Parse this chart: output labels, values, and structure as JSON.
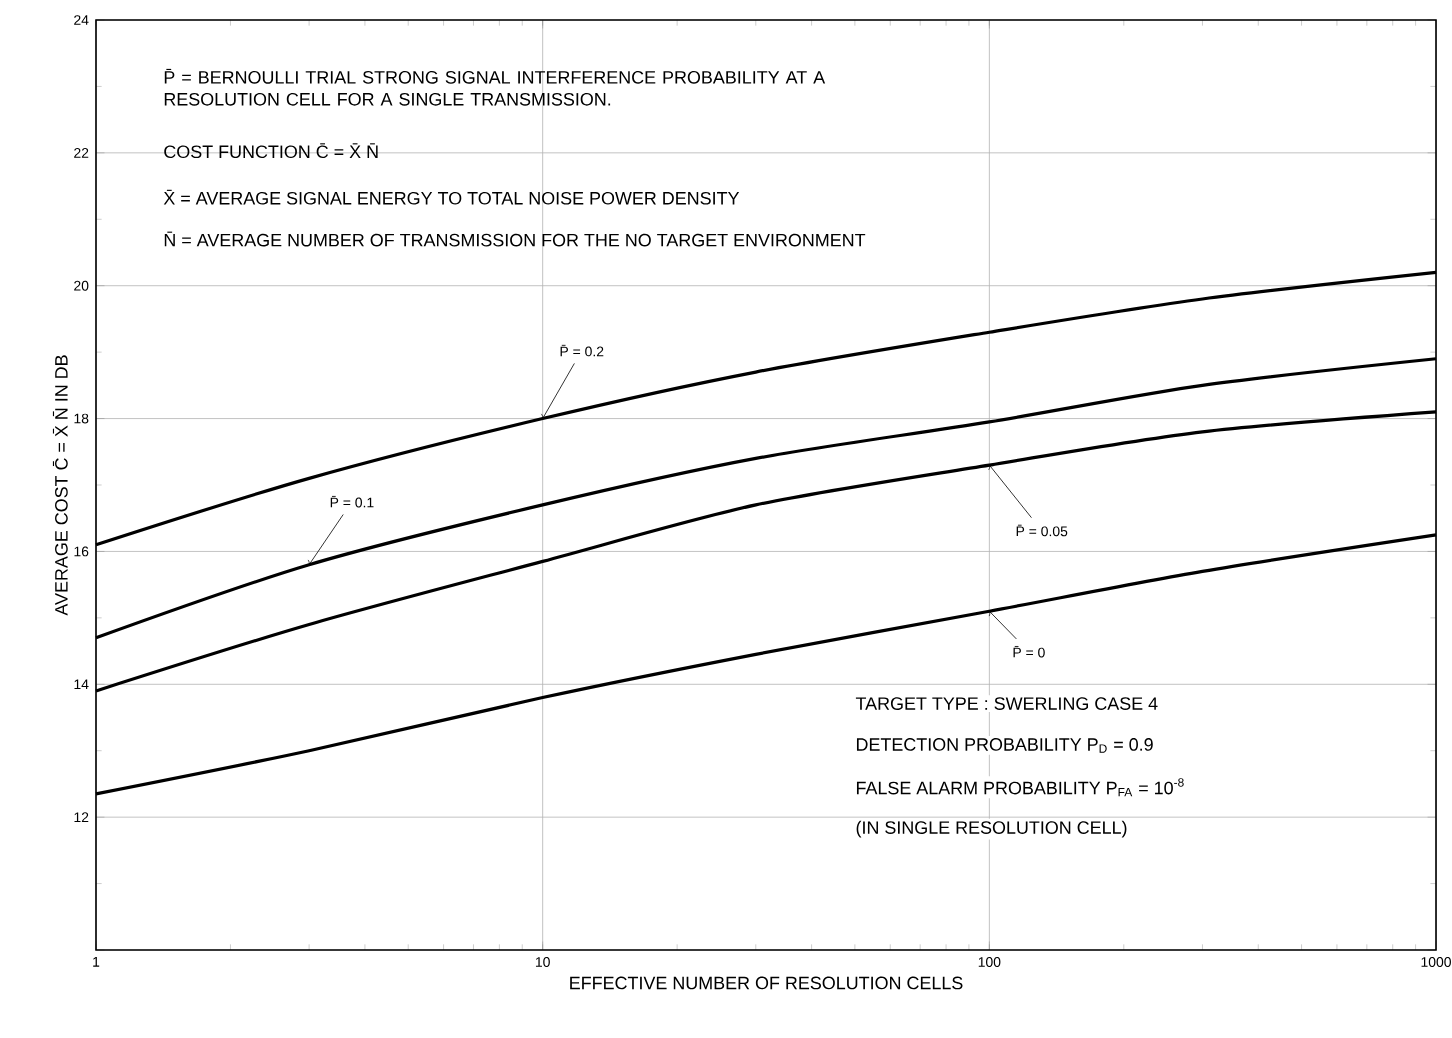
{
  "chart_data": {
    "type": "line",
    "xlabel": "EFFECTIVE NUMBER OF RESOLUTION CELLS",
    "ylabel": "AVERAGE COST C̄ = X̄ N̄ IN DB",
    "x": [
      1,
      3,
      10,
      30,
      100,
      300,
      1000
    ],
    "series": [
      {
        "name": "P̄ = 0.2",
        "color": "#000000",
        "values": [
          16.1,
          17.1,
          18.0,
          18.7,
          19.3,
          19.8,
          20.2
        ]
      },
      {
        "name": "P̄ = 0.1",
        "color": "#000000",
        "values": [
          14.7,
          15.8,
          16.7,
          17.4,
          17.95,
          18.5,
          18.9
        ]
      },
      {
        "name": "P̄ = 0.05",
        "color": "#000000",
        "values": [
          13.9,
          14.9,
          15.85,
          16.7,
          17.3,
          17.8,
          18.1
        ]
      },
      {
        "name": "P̄ = 0",
        "color": "#000000",
        "values": [
          12.35,
          13.0,
          13.8,
          14.45,
          15.1,
          15.7,
          16.25
        ]
      }
    ],
    "annotations": [
      "P̄ = BERNOULLI TRIAL STRONG SIGNAL INTERFERENCE PROBABILITY AT A RESOLUTION CELL FOR A SINGLE TRANSMISSION.",
      "COST FUNCTION C̄ = X̄ N̄",
      "X̄ = AVERAGE SIGNAL ENERGY TO TOTAL NOISE POWER DENSITY",
      "N̄ = AVERAGE NUMBER OF TRANSMISSION FOR THE NO TARGET ENVIRONMENT",
      "TARGET TYPE : SWERLING CASE 4",
      "DETECTION PROBABILITY P$_{D}$ = 0.9",
      "FALSE ALARM PROBABILITY P$_{FA}$ = 10$^{-8}$",
      "(IN SINGLE RESOLUTION CELL)"
    ],
    "log": "x",
    "grid": true,
    "marker": "none",
    "line_style": "solid",
    "xlim": [
      1,
      1000
    ],
    "ylim": [
      10,
      24
    ],
    "xticks": [
      1,
      10,
      100,
      1000
    ],
    "yticks": [
      {
        "value": 10,
        "label": null
      },
      12,
      14,
      16,
      18,
      20,
      22,
      24
    ]
  }
}
